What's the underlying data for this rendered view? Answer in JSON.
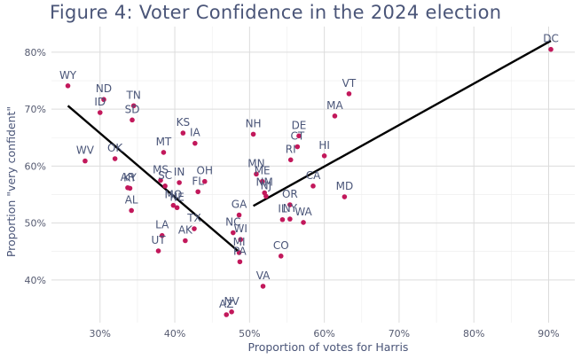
{
  "chart_data": {
    "type": "scatter",
    "title": "Figure 4: Voter Confidence in the 2024 election",
    "xlabel": "Proportion of votes for Harris",
    "ylabel": "Proportion \"very confident\"",
    "xlim": [
      0.235,
      0.935
    ],
    "ylim": [
      0.325,
      0.845
    ],
    "xticks": [
      0.3,
      0.4,
      0.5,
      0.6,
      0.7,
      0.8,
      0.9
    ],
    "yticks": [
      0.4,
      0.5,
      0.6,
      0.7,
      0.8
    ],
    "xtick_labels": [
      "30%",
      "40%",
      "50%",
      "60%",
      "70%",
      "80%",
      "90%"
    ],
    "ytick_labels": [
      "40%",
      "50%",
      "60%",
      "70%",
      "80%"
    ],
    "grid": true,
    "point_color": "#c2185b",
    "line_color": "#000000",
    "points": [
      {
        "label": "WY",
        "x": 0.257,
        "y": 0.741
      },
      {
        "label": "ND",
        "x": 0.305,
        "y": 0.717
      },
      {
        "label": "ID",
        "x": 0.3,
        "y": 0.694
      },
      {
        "label": "TN",
        "x": 0.345,
        "y": 0.706
      },
      {
        "label": "SD",
        "x": 0.343,
        "y": 0.681
      },
      {
        "label": "WV",
        "x": 0.28,
        "y": 0.609
      },
      {
        "label": "OK",
        "x": 0.32,
        "y": 0.613
      },
      {
        "label": "AR",
        "x": 0.337,
        "y": 0.562
      },
      {
        "label": "KY",
        "x": 0.34,
        "y": 0.561
      },
      {
        "label": "AL",
        "x": 0.342,
        "y": 0.522
      },
      {
        "label": "MS",
        "x": 0.381,
        "y": 0.575
      },
      {
        "label": "SC",
        "x": 0.387,
        "y": 0.565
      },
      {
        "label": "MO",
        "x": 0.398,
        "y": 0.531
      },
      {
        "label": "LA",
        "x": 0.383,
        "y": 0.478
      },
      {
        "label": "UT",
        "x": 0.378,
        "y": 0.451
      },
      {
        "label": "KS",
        "x": 0.411,
        "y": 0.658
      },
      {
        "label": "IA",
        "x": 0.427,
        "y": 0.64
      },
      {
        "label": "MT",
        "x": 0.385,
        "y": 0.624
      },
      {
        "label": "OH",
        "x": 0.44,
        "y": 0.573
      },
      {
        "label": "IN",
        "x": 0.406,
        "y": 0.571
      },
      {
        "label": "NE",
        "x": 0.403,
        "y": 0.527
      },
      {
        "label": "FL",
        "x": 0.431,
        "y": 0.555
      },
      {
        "label": "TX",
        "x": 0.426,
        "y": 0.49
      },
      {
        "label": "AK",
        "x": 0.414,
        "y": 0.469
      },
      {
        "label": "GA",
        "x": 0.486,
        "y": 0.514
      },
      {
        "label": "NC",
        "x": 0.478,
        "y": 0.483
      },
      {
        "label": "WI",
        "x": 0.488,
        "y": 0.471
      },
      {
        "label": "MI",
        "x": 0.486,
        "y": 0.448
      },
      {
        "label": "PA",
        "x": 0.487,
        "y": 0.432
      },
      {
        "label": "AZ",
        "x": 0.469,
        "y": 0.339
      },
      {
        "label": "NV",
        "x": 0.476,
        "y": 0.344
      },
      {
        "label": "NH",
        "x": 0.505,
        "y": 0.656
      },
      {
        "label": "MN",
        "x": 0.509,
        "y": 0.586
      },
      {
        "label": "ME",
        "x": 0.517,
        "y": 0.573
      },
      {
        "label": "NM",
        "x": 0.52,
        "y": 0.553
      },
      {
        "label": "NJ",
        "x": 0.522,
        "y": 0.547
      },
      {
        "label": "DE",
        "x": 0.566,
        "y": 0.653
      },
      {
        "label": "CT",
        "x": 0.564,
        "y": 0.634
      },
      {
        "label": "RI",
        "x": 0.555,
        "y": 0.611
      },
      {
        "label": "OR",
        "x": 0.554,
        "y": 0.532
      },
      {
        "label": "IL",
        "x": 0.544,
        "y": 0.506
      },
      {
        "label": "NY",
        "x": 0.554,
        "y": 0.507
      },
      {
        "label": "WA",
        "x": 0.572,
        "y": 0.501
      },
      {
        "label": "CO",
        "x": 0.542,
        "y": 0.442
      },
      {
        "label": "VA",
        "x": 0.518,
        "y": 0.389
      },
      {
        "label": "CA",
        "x": 0.585,
        "y": 0.565
      },
      {
        "label": "HI",
        "x": 0.6,
        "y": 0.618
      },
      {
        "label": "MA",
        "x": 0.614,
        "y": 0.688
      },
      {
        "label": "VT",
        "x": 0.633,
        "y": 0.727
      },
      {
        "label": "MD",
        "x": 0.627,
        "y": 0.546
      },
      {
        "label": "DC",
        "x": 0.903,
        "y": 0.805
      }
    ],
    "trend_lines": [
      {
        "x": [
          0.257,
          0.487
        ],
        "y": [
          0.706,
          0.448
        ]
      },
      {
        "x": [
          0.505,
          0.903
        ],
        "y": [
          0.53,
          0.82
        ]
      }
    ]
  }
}
